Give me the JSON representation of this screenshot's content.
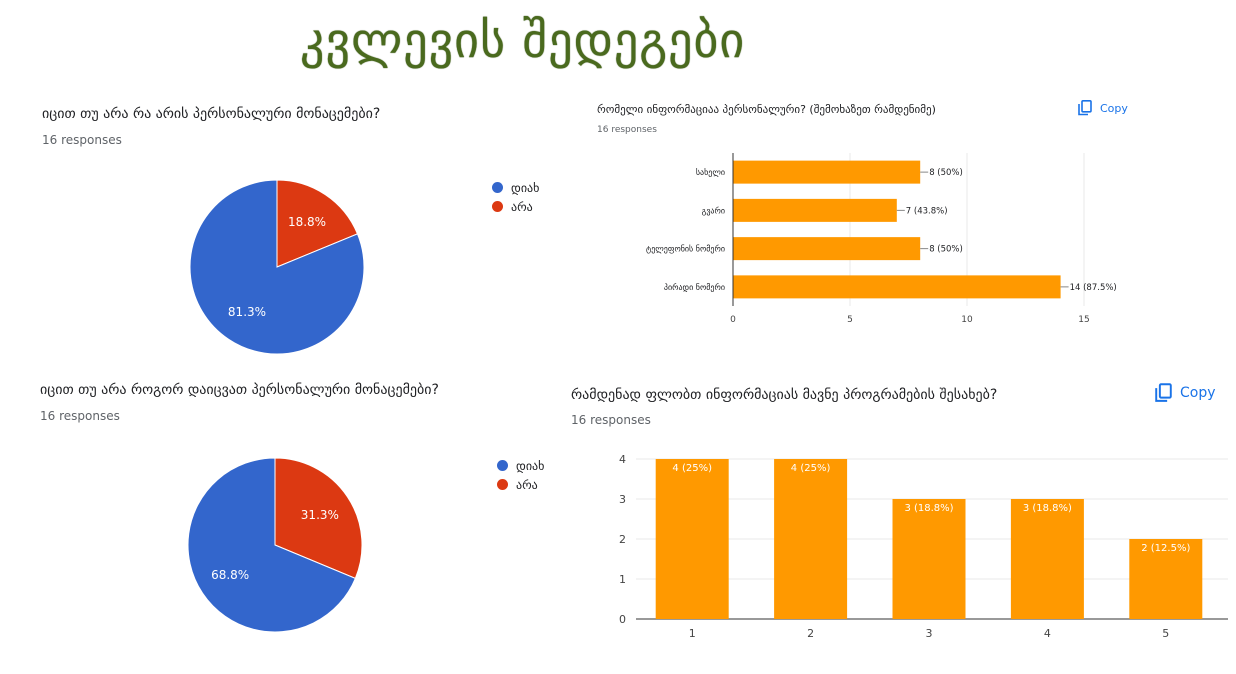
{
  "page": {
    "title": "კვლევის შედეგები"
  },
  "colors": {
    "blue": "#3366cc",
    "red": "#dc3912",
    "orange": "#ff9900",
    "title_green": "#4a6a1e",
    "copy_blue": "#1a73e8"
  },
  "chart_data": [
    {
      "type": "pie",
      "title": "იცით თუ არა რა არის პერსონალური მონაცემები?",
      "responses": "16 responses",
      "slices": [
        {
          "label": "დიახ",
          "value": 81.3,
          "display": "81.3%",
          "color": "#3366cc"
        },
        {
          "label": "არა",
          "value": 18.8,
          "display": "18.8%",
          "color": "#dc3912"
        }
      ],
      "legend_position": "right"
    },
    {
      "type": "bar",
      "orientation": "horizontal",
      "title": "რომელი ინფორმაციაა პერსონალური? (შემოხაზეთ რამდენიმე)",
      "responses": "16 responses",
      "copy_label": "Copy",
      "categories": [
        "სახელი",
        "გვარი",
        "ტელეფონის ნომერი",
        "პირადი ნომერი"
      ],
      "values": [
        8,
        7,
        8,
        14
      ],
      "data_labels": [
        "8 (50%)",
        "7 (43.8%)",
        "8 (50%)",
        "14 (87.5%)"
      ],
      "xlim": [
        0,
        15
      ],
      "xticks": [
        "0",
        "5",
        "10",
        "15"
      ],
      "grid": true,
      "color": "#ff9900"
    },
    {
      "type": "pie",
      "title": "იცით თუ არა როგორ დაიცვათ პერსონალური მონაცემები?",
      "responses": "16 responses",
      "slices": [
        {
          "label": "დიახ",
          "value": 68.8,
          "display": "68.8%",
          "color": "#3366cc"
        },
        {
          "label": "არა",
          "value": 31.3,
          "display": "31.3%",
          "color": "#dc3912"
        }
      ],
      "legend_position": "right"
    },
    {
      "type": "bar",
      "orientation": "vertical",
      "title": "რამდენად ფლობთ ინფორმაციას მავნე პროგრამების შესახებ?",
      "responses": "16 responses",
      "copy_label": "Copy",
      "categories": [
        "1",
        "2",
        "3",
        "4",
        "5"
      ],
      "values": [
        4,
        4,
        3,
        3,
        2
      ],
      "data_labels": [
        "4 (25%)",
        "4 (25%)",
        "3 (18.8%)",
        "3 (18.8%)",
        "2 (12.5%)"
      ],
      "ylim": [
        0,
        4
      ],
      "yticks": [
        "0",
        "1",
        "2",
        "3",
        "4"
      ],
      "grid": true,
      "color": "#ff9900"
    }
  ]
}
